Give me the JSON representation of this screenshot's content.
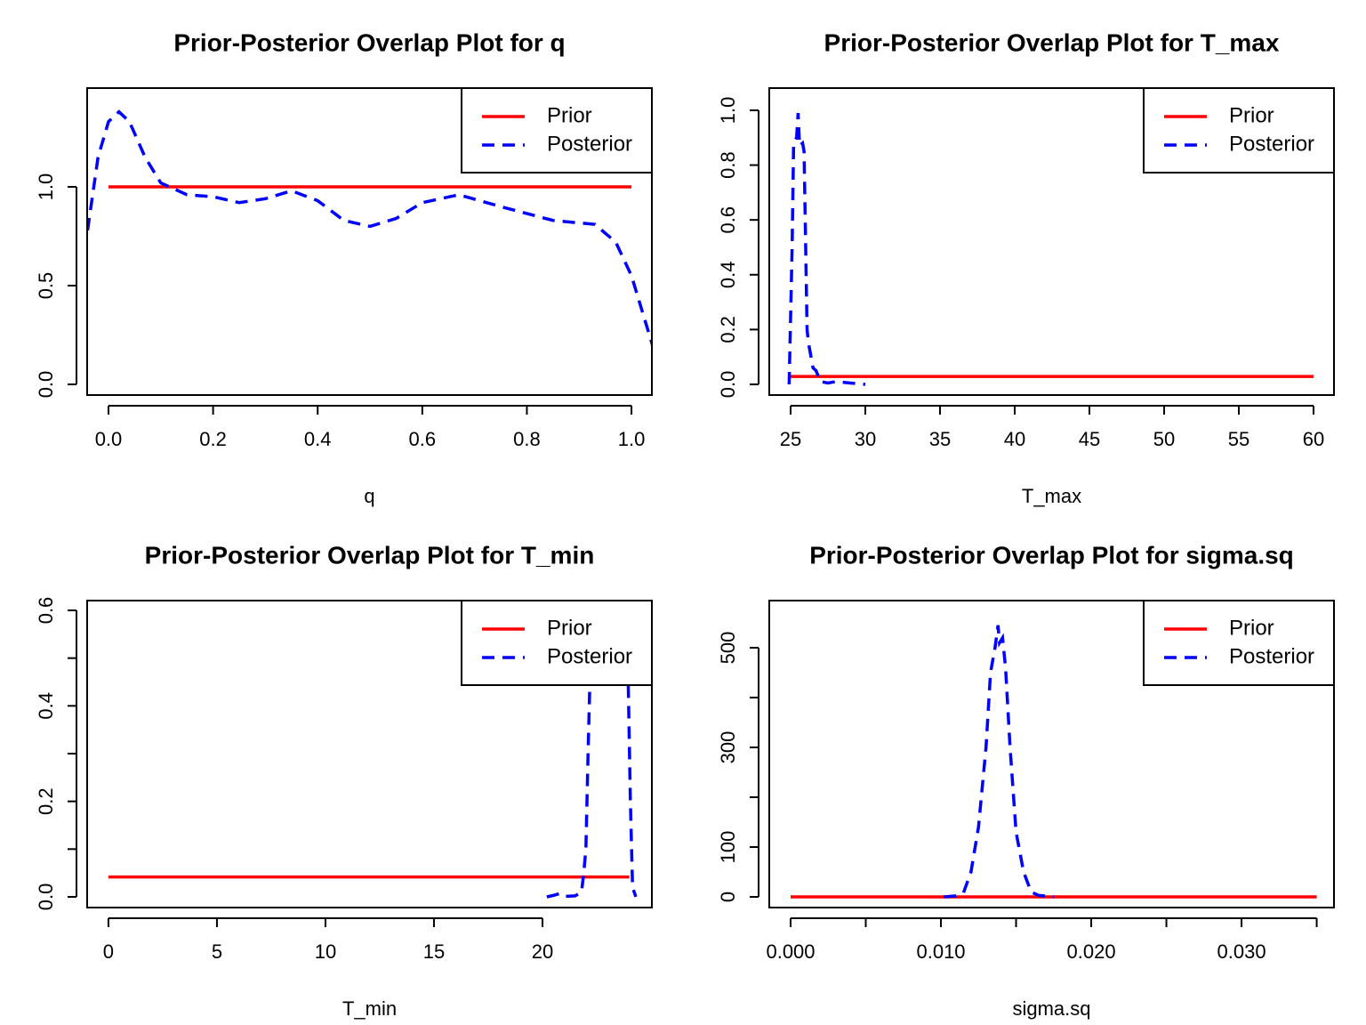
{
  "chart_data": [
    {
      "type": "line",
      "title": "Prior-Posterior Overlap Plot for q",
      "xlabel": "q",
      "xlim": [
        -0.0408,
        1.039
      ],
      "ylim": [
        -0.054,
        1.5
      ],
      "xticks": [
        {
          "value": 0,
          "label": "0.0"
        },
        {
          "value": 0.2,
          "label": "0.2"
        },
        {
          "value": 0.4,
          "label": "0.4"
        },
        {
          "value": 0.6,
          "label": "0.6"
        },
        {
          "value": 0.8,
          "label": "0.8"
        },
        {
          "value": 1,
          "label": "1.0"
        }
      ],
      "yticks": [
        {
          "value": 0,
          "label": "0.0"
        },
        {
          "value": 0.5,
          "label": "0.5"
        },
        {
          "value": 1,
          "label": "1.0"
        }
      ],
      "legend": "topright",
      "series": [
        {
          "name": "Prior",
          "color": "#ff0000",
          "dash": false,
          "x": [
            0,
            1
          ],
          "values": [
            1,
            1
          ]
        },
        {
          "name": "Posterior",
          "color": "#0000ff",
          "dash": true,
          "x": [
            -0.04,
            -0.02,
            0,
            0.02,
            0.04,
            0.07,
            0.1,
            0.15,
            0.2,
            0.25,
            0.3,
            0.35,
            0.4,
            0.45,
            0.5,
            0.55,
            0.6,
            0.67,
            0.75,
            0.85,
            0.93,
            0.97,
            1.0,
            1.04
          ],
          "values": [
            0.78,
            1.15,
            1.33,
            1.38,
            1.33,
            1.15,
            1.02,
            0.96,
            0.95,
            0.92,
            0.94,
            0.98,
            0.93,
            0.83,
            0.8,
            0.84,
            0.92,
            0.96,
            0.9,
            0.83,
            0.81,
            0.72,
            0.55,
            0.2
          ]
        }
      ]
    },
    {
      "type": "line",
      "title": "Prior-Posterior Overlap Plot for T_max",
      "xlabel": "T_max",
      "xlim": [
        23.57,
        61.37
      ],
      "ylim": [
        -0.039,
        1.081
      ],
      "xticks": [
        25,
        30,
        35,
        40,
        45,
        50,
        55,
        60
      ],
      "yticks": [
        {
          "value": 0,
          "label": "0.0"
        },
        {
          "value": 0.2,
          "label": "0.2"
        },
        {
          "value": 0.4,
          "label": "0.4"
        },
        {
          "value": 0.6,
          "label": "0.6"
        },
        {
          "value": 0.8,
          "label": "0.8"
        },
        {
          "value": 1,
          "label": "1.0"
        }
      ],
      "legend": "topright",
      "series": [
        {
          "name": "Prior",
          "color": "#ff0000",
          "dash": false,
          "x": [
            25,
            60
          ],
          "values": [
            0.0286,
            0.0286
          ]
        },
        {
          "name": "Posterior",
          "color": "#0000ff",
          "dash": true,
          "x": [
            24.9,
            25.1,
            25.2,
            25.4,
            25.5,
            25.6,
            25.8,
            25.9,
            26.1,
            26.2,
            26.5,
            26.7,
            27,
            27.5,
            28,
            29,
            30
          ],
          "values": [
            0,
            0.5,
            0.88,
            0.9,
            0.99,
            0.87,
            0.88,
            0.85,
            0.2,
            0.15,
            0.06,
            0.05,
            0.01,
            0.005,
            0.01,
            0.005,
            0
          ]
        }
      ]
    },
    {
      "type": "line",
      "title": "Prior-Posterior Overlap Plot for T_min",
      "xlabel": "T_min",
      "xlim": [
        -0.98,
        25.04
      ],
      "ylim": [
        -0.0224,
        0.6205
      ],
      "xticks": [
        0,
        5,
        10,
        15,
        20
      ],
      "yticks": [
        {
          "value": 0,
          "label": "0.0"
        },
        {
          "value": 0.1,
          "label": null
        },
        {
          "value": 0.2,
          "label": "0.2"
        },
        {
          "value": 0.3,
          "label": null
        },
        {
          "value": 0.4,
          "label": "0.4"
        },
        {
          "value": 0.5,
          "label": null
        },
        {
          "value": 0.6,
          "label": "0.6"
        }
      ],
      "legend": "topright",
      "series": [
        {
          "name": "Prior",
          "color": "#ff0000",
          "dash": false,
          "x": [
            0,
            24
          ],
          "values": [
            0.0417,
            0.0417
          ]
        },
        {
          "name": "Posterior",
          "color": "#0000ff",
          "dash": true,
          "x": [
            20.2,
            20.5,
            20.8,
            21,
            21.5,
            21.8,
            21.9,
            22,
            22.1,
            22.2,
            22.4,
            23,
            23.8,
            23.95,
            24.05,
            24.15,
            24.3
          ],
          "values": [
            0,
            0.003,
            0.007,
            0.001,
            0.002,
            0.01,
            0.05,
            0.1,
            0.3,
            0.48,
            0.6,
            0.58,
            0.55,
            0.45,
            0.2,
            0.02,
            0
          ]
        }
      ]
    },
    {
      "type": "line",
      "title": "Prior-Posterior Overlap Plot for sigma.sq",
      "xlabel": "sigma.sq",
      "xlim": [
        -0.00142,
        0.03615
      ],
      "ylim": [
        -21.4,
        594.6
      ],
      "xticks": [
        {
          "value": 0,
          "label": "0.000"
        },
        {
          "value": 0.005,
          "label": null
        },
        {
          "value": 0.01,
          "label": "0.010"
        },
        {
          "value": 0.015,
          "label": null
        },
        {
          "value": 0.02,
          "label": "0.020"
        },
        {
          "value": 0.025,
          "label": null
        },
        {
          "value": 0.03,
          "label": "0.030"
        },
        {
          "value": 0.035,
          "label": null
        }
      ],
      "yticks": [
        0,
        100,
        {
          "value": 200,
          "label": null
        },
        300,
        {
          "value": 400,
          "label": null
        },
        500
      ],
      "legend": "topright",
      "series": [
        {
          "name": "Prior",
          "color": "#ff0000",
          "dash": false,
          "x": [
            0,
            0.035
          ],
          "values": [
            0,
            0
          ]
        },
        {
          "name": "Posterior",
          "color": "#0000ff",
          "dash": true,
          "x": [
            0.0102,
            0.011,
            0.0115,
            0.012,
            0.0125,
            0.013,
            0.0133,
            0.0136,
            0.0138,
            0.0139,
            0.0141,
            0.0143,
            0.0146,
            0.015,
            0.0155,
            0.016,
            0.0165,
            0.0175
          ],
          "values": [
            0,
            2,
            8,
            50,
            140,
            300,
            450,
            500,
            545,
            510,
            520,
            460,
            300,
            130,
            50,
            10,
            3,
            0
          ]
        }
      ]
    }
  ]
}
